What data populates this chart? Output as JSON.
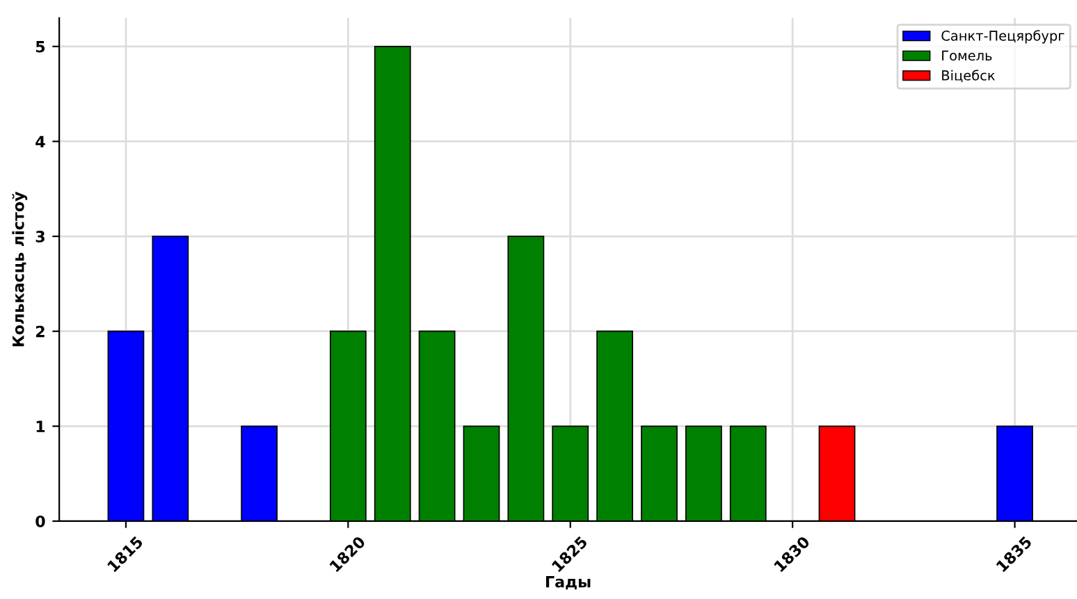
{
  "chart_data": {
    "type": "bar",
    "xlabel": "Гады",
    "ylabel": "Колькасць лістоў",
    "series": [
      {
        "name": "Санкт-Пецярбург",
        "color": "#0000ff",
        "x": [
          1815,
          1816,
          1818,
          1835
        ],
        "values": [
          2,
          3,
          1,
          1
        ]
      },
      {
        "name": "Гомель",
        "color": "#008000",
        "x": [
          1820,
          1821,
          1822,
          1823,
          1824,
          1825,
          1826,
          1827,
          1828,
          1829
        ],
        "values": [
          2,
          5,
          2,
          1,
          3,
          1,
          2,
          1,
          1,
          1
        ]
      },
      {
        "name": "Віцебск",
        "color": "#ff0000",
        "x": [
          1831
        ],
        "values": [
          1
        ]
      }
    ],
    "xlim": [
      1813.5,
      1836.4
    ],
    "xticks": [
      1815,
      1820,
      1825,
      1830,
      1835
    ],
    "ylim": [
      0,
      5.3
    ],
    "yticks": [
      0,
      1,
      2,
      3,
      4,
      5
    ],
    "grid": true,
    "legend": "top right"
  }
}
